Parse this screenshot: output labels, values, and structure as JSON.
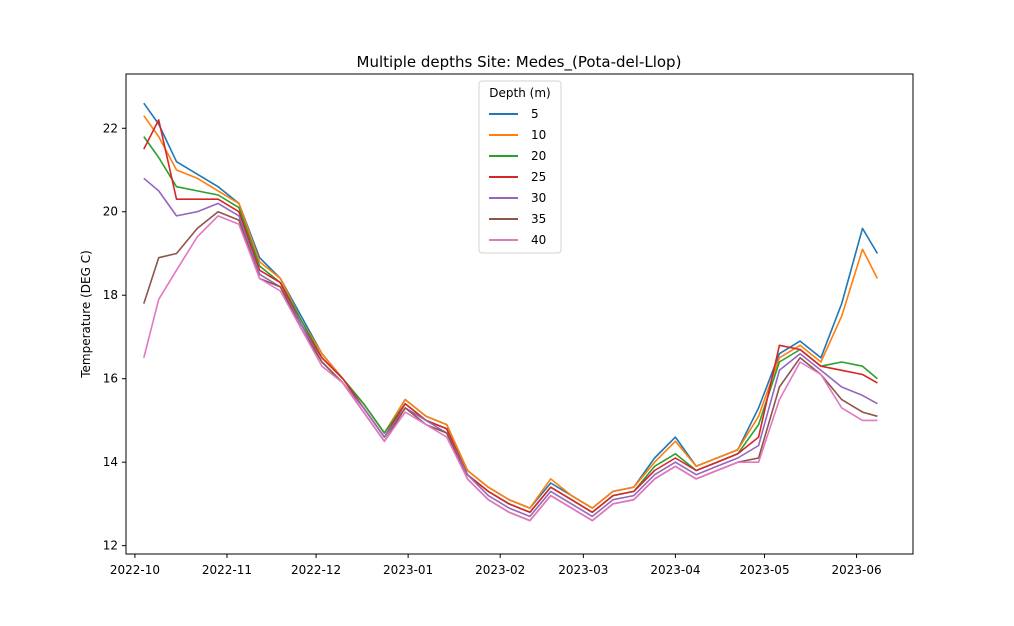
{
  "chart_data": {
    "type": "line",
    "title": "Multiple depths Site: Medes_(Pota-del-Llop)",
    "xlabel": "",
    "ylabel": "Temperature (DEG C)",
    "xlim": [
      "2022-09-28",
      "2023-06-20"
    ],
    "ylim": [
      11.8,
      23.3
    ],
    "x_ticks": [
      "2022-10",
      "2022-11",
      "2022-12",
      "2023-01",
      "2023-02",
      "2023-03",
      "2023-04",
      "2023-05",
      "2023-06"
    ],
    "y_ticks": [
      12,
      14,
      16,
      18,
      20,
      22
    ],
    "grid": false,
    "legend": {
      "title": "Depth (m)",
      "placement": "top-center"
    },
    "x": [
      "2022-10-04",
      "2022-10-09",
      "2022-10-15",
      "2022-10-22",
      "2022-10-29",
      "2022-11-05",
      "2022-11-12",
      "2022-11-19",
      "2022-11-26",
      "2022-12-03",
      "2022-12-10",
      "2022-12-17",
      "2022-12-24",
      "2022-12-31",
      "2023-01-07",
      "2023-01-14",
      "2023-01-21",
      "2023-01-28",
      "2023-02-04",
      "2023-02-11",
      "2023-02-18",
      "2023-02-25",
      "2023-03-04",
      "2023-03-11",
      "2023-03-18",
      "2023-03-25",
      "2023-04-01",
      "2023-04-08",
      "2023-04-15",
      "2023-04-22",
      "2023-04-29",
      "2023-05-06",
      "2023-05-13",
      "2023-05-20",
      "2023-05-27",
      "2023-06-03",
      "2023-06-08"
    ],
    "series": [
      {
        "name": "5",
        "color": "#1f77b4",
        "values": [
          22.6,
          22.1,
          21.2,
          20.9,
          20.6,
          20.2,
          18.9,
          18.4,
          17.5,
          16.6,
          16.0,
          15.4,
          14.7,
          15.5,
          15.1,
          14.9,
          13.8,
          13.4,
          13.1,
          12.9,
          13.5,
          13.2,
          12.9,
          13.3,
          13.4,
          14.1,
          14.6,
          13.9,
          14.1,
          14.3,
          15.3,
          16.6,
          16.9,
          16.5,
          17.8,
          19.6,
          19.0
        ]
      },
      {
        "name": "10",
        "color": "#ff7f0e",
        "values": [
          22.3,
          21.8,
          21.0,
          20.8,
          20.5,
          20.2,
          18.8,
          18.4,
          17.4,
          16.6,
          16.0,
          15.4,
          14.7,
          15.5,
          15.1,
          14.9,
          13.8,
          13.4,
          13.1,
          12.9,
          13.6,
          13.2,
          12.9,
          13.3,
          13.4,
          14.0,
          14.5,
          13.9,
          14.1,
          14.3,
          15.1,
          16.5,
          16.8,
          16.4,
          17.5,
          19.1,
          18.4
        ]
      },
      {
        "name": "20",
        "color": "#2ca02c",
        "values": [
          21.8,
          21.3,
          20.6,
          20.5,
          20.4,
          20.1,
          18.7,
          18.3,
          17.4,
          16.5,
          16.0,
          15.4,
          14.7,
          15.4,
          15.0,
          14.8,
          13.7,
          13.3,
          13.0,
          12.8,
          13.4,
          13.1,
          12.8,
          13.2,
          13.3,
          13.9,
          14.2,
          13.8,
          14.0,
          14.2,
          14.9,
          16.4,
          16.7,
          16.3,
          16.4,
          16.3,
          16.0
        ]
      },
      {
        "name": "25",
        "color": "#d62728",
        "values": [
          21.5,
          22.2,
          20.3,
          20.3,
          20.3,
          20.0,
          18.6,
          18.3,
          17.3,
          16.5,
          16.0,
          15.3,
          14.6,
          15.4,
          15.0,
          14.8,
          13.7,
          13.3,
          13.0,
          12.8,
          13.4,
          13.1,
          12.8,
          13.2,
          13.3,
          13.8,
          14.1,
          13.8,
          14.0,
          14.2,
          14.6,
          16.8,
          16.7,
          16.3,
          16.2,
          16.1,
          15.9
        ]
      },
      {
        "name": "30",
        "color": "#9467bd",
        "values": [
          20.8,
          20.5,
          19.9,
          20.0,
          20.2,
          19.9,
          18.5,
          18.2,
          17.3,
          16.4,
          15.9,
          15.3,
          14.6,
          15.3,
          15.0,
          14.7,
          13.7,
          13.2,
          12.9,
          12.7,
          13.3,
          13.0,
          12.7,
          13.1,
          13.2,
          13.7,
          14.0,
          13.7,
          13.9,
          14.1,
          14.4,
          16.2,
          16.6,
          16.2,
          15.8,
          15.6,
          15.4
        ]
      },
      {
        "name": "35",
        "color": "#8c564b",
        "values": [
          17.8,
          18.9,
          19.0,
          19.6,
          20.0,
          19.8,
          18.4,
          18.2,
          17.2,
          16.4,
          15.9,
          15.2,
          14.5,
          15.3,
          14.9,
          14.7,
          13.6,
          13.1,
          12.8,
          12.6,
          13.2,
          12.9,
          12.6,
          13.0,
          13.1,
          13.6,
          13.9,
          13.6,
          13.8,
          14.0,
          14.1,
          15.8,
          16.5,
          16.1,
          15.5,
          15.2,
          15.1
        ]
      },
      {
        "name": "40",
        "color": "#e377c2",
        "values": [
          16.5,
          17.9,
          18.6,
          19.4,
          19.9,
          19.7,
          18.4,
          18.1,
          17.2,
          16.3,
          15.9,
          15.2,
          14.5,
          15.2,
          14.9,
          14.6,
          13.6,
          13.1,
          12.8,
          12.6,
          13.2,
          12.9,
          12.6,
          13.0,
          13.1,
          13.6,
          13.9,
          13.6,
          13.8,
          14.0,
          14.0,
          15.5,
          16.4,
          16.1,
          15.3,
          15.0,
          15.0
        ]
      }
    ]
  }
}
